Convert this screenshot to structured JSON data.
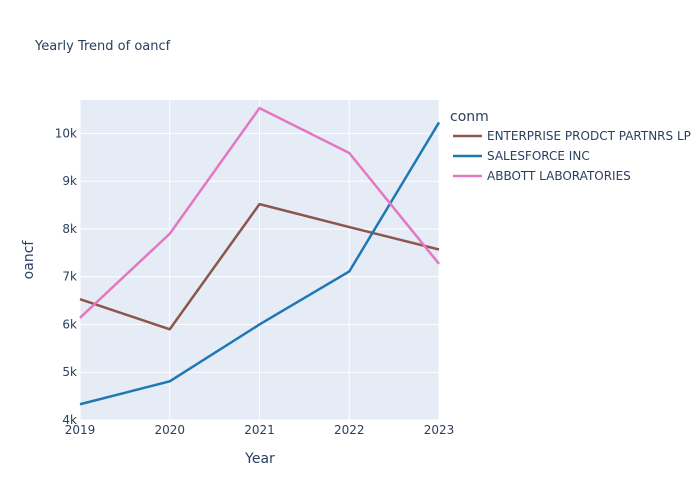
{
  "chart_data": {
    "type": "line",
    "title": "Yearly Trend of oancf",
    "xlabel": "Year",
    "ylabel": "oancf",
    "x": [
      2019,
      2020,
      2021,
      2022,
      2023
    ],
    "xlim": [
      2019,
      2023
    ],
    "ylim": [
      4000,
      10700
    ],
    "yticks": [
      4000,
      5000,
      6000,
      7000,
      8000,
      9000,
      10000
    ],
    "ytick_labels": [
      "4k",
      "5k",
      "6k",
      "7k",
      "8k",
      "9k",
      "10k"
    ],
    "grid": true,
    "legend_title": "conm",
    "legend_position": "right",
    "series": [
      {
        "name": "ENTERPRISE PRODCT PARTNRS LP",
        "color": "#8c564b",
        "values": [
          6530,
          5900,
          8520,
          8040,
          7570
        ]
      },
      {
        "name": "SALESFORCE INC",
        "color": "#1f77b4",
        "values": [
          4330,
          4810,
          6000,
          7110,
          10230
        ]
      },
      {
        "name": "ABBOTT LABORATORIES",
        "color": "#e377c2",
        "values": [
          6140,
          7900,
          10530,
          9590,
          7270
        ]
      }
    ]
  }
}
